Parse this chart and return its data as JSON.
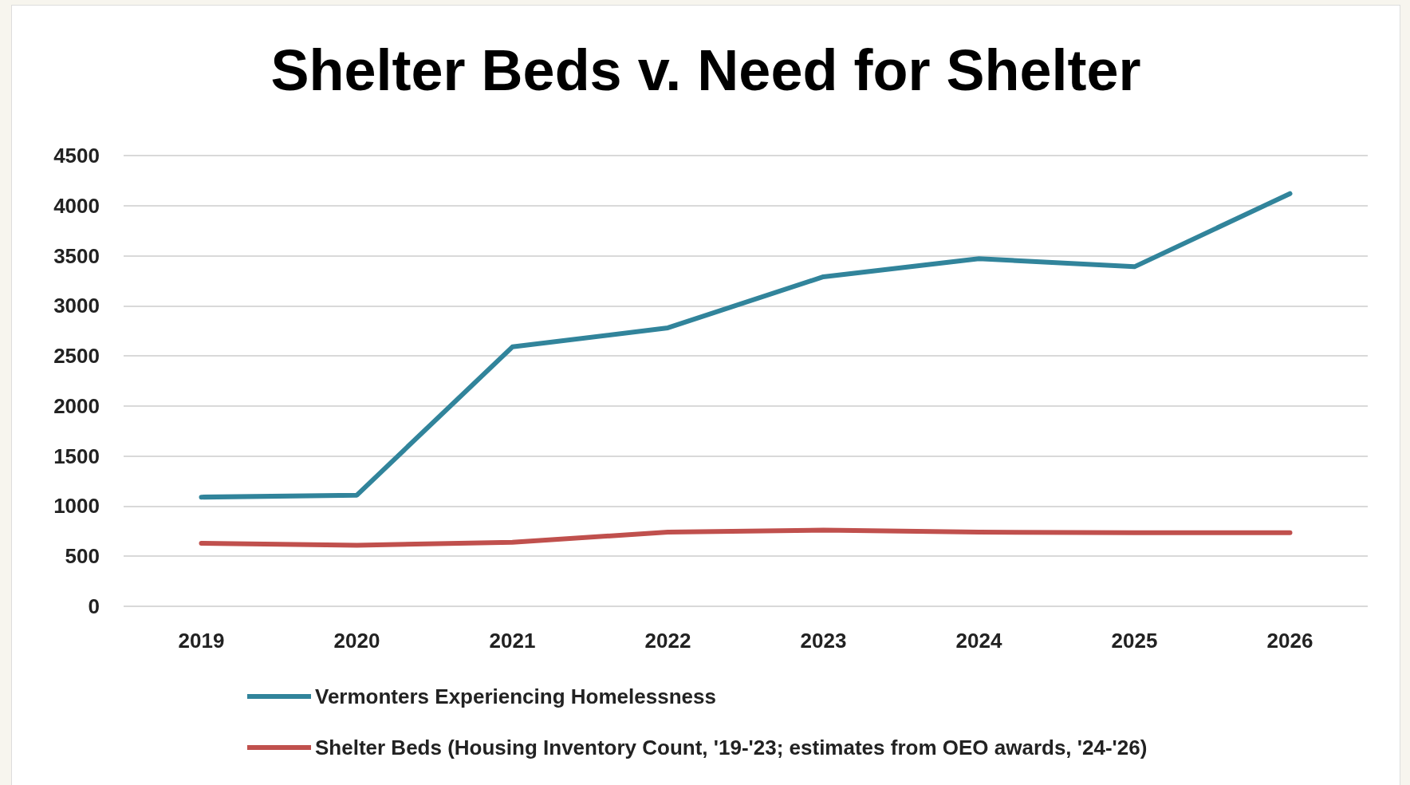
{
  "chart_data": {
    "type": "line",
    "title": "Shelter Beds v. Need for Shelter",
    "categories": [
      "2019",
      "2020",
      "2021",
      "2022",
      "2023",
      "2024",
      "2025",
      "2026"
    ],
    "series": [
      {
        "name": "Vermonters Experiencing Homelessness",
        "color": "#31849b",
        "values": [
          1090,
          1110,
          2590,
          2780,
          3290,
          3470,
          3390,
          4120
        ]
      },
      {
        "name": "Shelter Beds (Housing Inventory Count, '19-'23; estimates from OEO awards, '24-'26)",
        "color": "#c0504d",
        "values": [
          630,
          610,
          640,
          740,
          760,
          740,
          735,
          735
        ]
      }
    ],
    "ylim": [
      0,
      4500
    ],
    "yticks": [
      0,
      500,
      1000,
      1500,
      2000,
      2500,
      3000,
      3500,
      4000,
      4500
    ],
    "grid": "y",
    "legend": "bottom",
    "marker": "none",
    "line_style": "solid"
  }
}
